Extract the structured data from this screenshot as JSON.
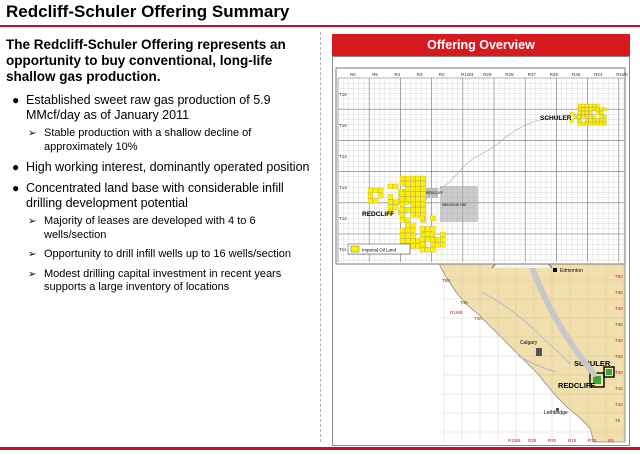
{
  "page": {
    "title": "Redcliff-Schuler Offering Summary",
    "intro": "The Redcliff-Schuler Offering represents an opportunity to buy conventional, long-life shallow gas production.",
    "bullets": [
      {
        "text": "Established sweet raw gas production of 5.9 MMcf/day as of January 2011",
        "subs": [
          "Stable production with a shallow decline of approximately 10%"
        ]
      },
      {
        "text": "High working interest, dominantly operated position",
        "subs": []
      },
      {
        "text": "Concentrated land base with considerable infill drilling development potential",
        "subs": [
          "Majority of leases are developed with 4 to 6 wells/section",
          "Opportunity to drill infill wells up to 16 wells/section",
          "Modest drilling capital investment in recent years supports a large inventory of locations"
        ]
      }
    ]
  },
  "panel": {
    "header": "Offering Overview",
    "inset_map": {
      "ranges": [
        "R6",
        "R5",
        "R4",
        "R3",
        "R2",
        "R1W4",
        "R29",
        "R28",
        "R27",
        "R26",
        "R25",
        "R24",
        "R1W4"
      ],
      "townships": [
        "T16",
        "T15",
        "T14",
        "T13",
        "T12",
        "T11"
      ],
      "labels": {
        "schuler": "SCHULER",
        "redcliff": "REDCLIFF",
        "medicine_hat": "MEDICINE HAT",
        "redcliff_town": "REDCLIFF",
        "legend": "Imperial Oil Land"
      }
    },
    "province_map": {
      "labels": {
        "edmonton": "Edmonton",
        "calgary": "Calgary",
        "lethbridge": "Lethbridge",
        "schuler": "SCHULER",
        "redcliff": "REDCLIFF"
      },
      "townships": [
        "T50",
        "T45",
        "T40",
        "T35",
        "T30",
        "T25",
        "T20",
        "T15",
        "T10",
        "T5"
      ],
      "ranges_bottom": [
        "R1W5",
        "R25",
        "R20",
        "R15",
        "R10",
        "R5",
        "R1W4"
      ],
      "ranges_left": [
        "T50",
        "R1W5",
        "T45",
        "T40"
      ]
    },
    "colors": {
      "accent": "#d71920",
      "land": "#f2dfae",
      "lease": "#ffef00",
      "town": "#a8a8a8",
      "grid": "#b9b9b9"
    }
  }
}
